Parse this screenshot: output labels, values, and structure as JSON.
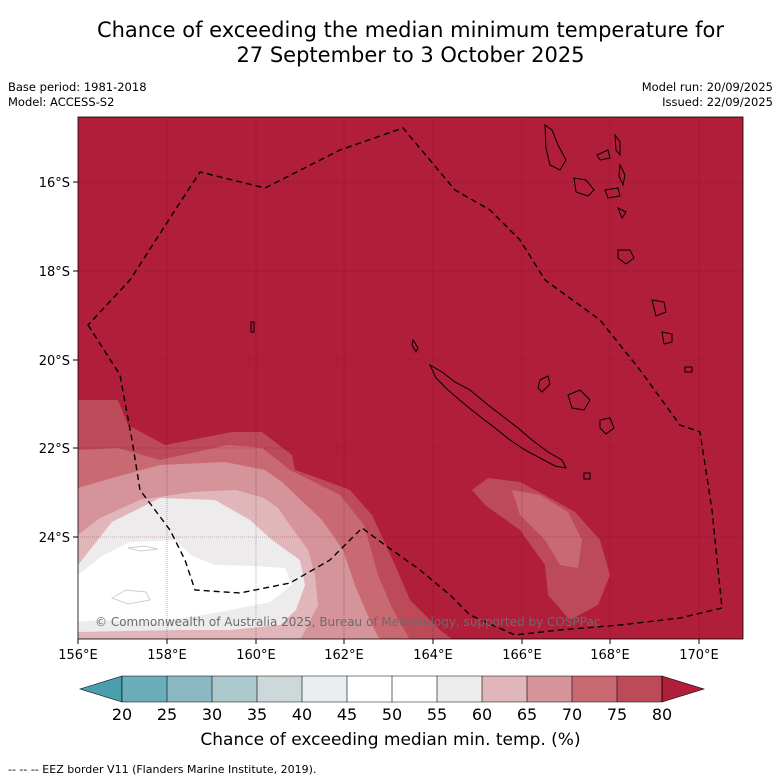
{
  "title": {
    "line1": "Chance of exceeding the median minimum temperature for",
    "line2": "27 September to 3 October 2025"
  },
  "meta": {
    "base_period": "Base period: 1981-2018",
    "model": "Model: ACCESS-S2",
    "model_run": "Model run: 20/09/2025",
    "issued": "Issued: 22/09/2025"
  },
  "map": {
    "lon_labels": [
      "156°E",
      "158°E",
      "160°E",
      "162°E",
      "164°E",
      "166°E",
      "168°E",
      "170°E"
    ],
    "lat_labels": [
      "16°S",
      "18°S",
      "20°S",
      "22°S",
      "24°S"
    ],
    "copyright": "© Commonwealth of Australia 2025, Bureau of Meteorology, supported by COSPPac"
  },
  "colorbar": {
    "ticks": [
      "20",
      "25",
      "30",
      "35",
      "40",
      "45",
      "50",
      "55",
      "60",
      "65",
      "70",
      "75",
      "80"
    ],
    "label": "Chance of exceeding median min. temp. (%)",
    "colors": {
      "under": "#4a9ead",
      "b20_25": "#6aaeba",
      "b25_30": "#8ab8c2",
      "b30_35": "#abc9cc",
      "b35_40": "#cdd8da",
      "b40_45": "#e9eff1",
      "b45_50": "#ffffff",
      "b50_55": "#ffffff",
      "b55_60": "#eeebec",
      "b60_65": "#e1b6ba",
      "b65_70": "#d5949a",
      "b70_75": "#c96a73",
      "b75_80": "#bd4a59",
      "over": "#b01e3a"
    }
  },
  "legend": {
    "text": "--  --  -- EEZ border V11 (Flanders Marine Institute, 2019)."
  }
}
